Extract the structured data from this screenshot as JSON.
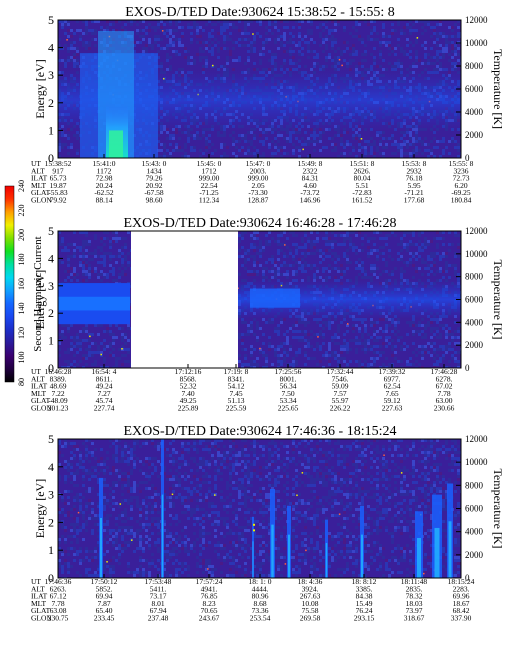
{
  "colorbar": {
    "label": "Second Harmonic Current",
    "ticks": [
      "80",
      "100",
      "120",
      "140",
      "160",
      "180",
      "200",
      "220",
      "240"
    ],
    "colors": [
      "#000000",
      "#200040",
      "#3a0070",
      "#2b1a9a",
      "#1c2ec8",
      "#1a48f0",
      "#1466ff",
      "#10a0ff",
      "#00d8f0",
      "#00e0a0",
      "#10e020",
      "#80e000",
      "#f0f000",
      "#ffa000",
      "#ff3000",
      "#f00000"
    ]
  },
  "chart_data": [
    {
      "type": "heatmap",
      "title": "EXOS-D/TED  Date:930624  15:38:52 - 15:55: 8",
      "ylabel": "Energy [eV]",
      "y2label": "Temperature [K]",
      "ylim": [
        0,
        5
      ],
      "y2lim": [
        0,
        12000
      ],
      "yticks": [
        "0",
        "1",
        "2",
        "3",
        "4",
        "5"
      ],
      "y2ticks": [
        "0",
        "2000",
        "4000",
        "6000",
        "8000",
        "10000",
        "12000"
      ],
      "row_labels": [
        "UT",
        "ALT",
        "ILAT",
        "MLT",
        "GLAT",
        "GLON"
      ],
      "columns": [
        [
          "15:38:52",
          "917",
          "65.73",
          "19.87",
          "-55.83",
          "79.92"
        ],
        [
          "15:41:0",
          "1172",
          "72.98",
          "20.24",
          "-62.52",
          "88.14"
        ],
        [
          "15:43: 0",
          "1434",
          "79.26",
          "20.92",
          "-67.58",
          "98.60"
        ],
        [
          "15:45: 0",
          "1712",
          "999.00",
          "22.54",
          "-71.25",
          "112.34"
        ],
        [
          "15:47: 0",
          "2003.",
          "999.00",
          "2.05",
          "-73.30",
          "128.87"
        ],
        [
          "15:49: 8",
          "2322",
          "84.31",
          "4.60",
          "-73.72",
          "146.96"
        ],
        [
          "15:51: 8",
          "2626.",
          "80.04",
          "5.51",
          "-72.83",
          "161.52"
        ],
        [
          "15:53: 8",
          "2932",
          "76.18",
          "5.95",
          "-71.21",
          "177.68"
        ],
        [
          "15:55: 8",
          "3236",
          "72.73",
          "6.20",
          "-69.25",
          "180.84"
        ]
      ]
    },
    {
      "type": "heatmap",
      "title": "EXOS-D/TED  Date:930624  16:46:28 - 17:46:28",
      "ylabel": "Energy [eV]",
      "y2label": "Temperature [K]",
      "ylim": [
        0,
        5
      ],
      "y2lim": [
        0,
        12000
      ],
      "yticks": [
        "0",
        "1",
        "2",
        "3",
        "4",
        "5"
      ],
      "y2ticks": [
        "0",
        "2000",
        "4000",
        "6000",
        "8000",
        "10000",
        "12000"
      ],
      "row_labels": [
        "UT",
        "ALT",
        "ILAT",
        "MLT",
        "GLAT",
        "GLON"
      ],
      "columns": [
        [
          "16:46:28",
          "8389.",
          "48.69",
          "7.22",
          "-48.09",
          "201.23"
        ],
        [
          "16:54: 4",
          "8611.",
          "49.24",
          "7.27",
          "45.74",
          "227.74"
        ],
        [
          "17:12:16",
          "8568.",
          "52.32",
          "7.40",
          "49.25",
          "225.89"
        ],
        [
          "17:19: 8",
          "8341.",
          "54.12",
          "7.45",
          "51.13",
          "225.59"
        ],
        [
          "17:25:56",
          "8001.",
          "56.34",
          "7.50",
          "53.34",
          "225.65"
        ],
        [
          "17:32:44",
          "7546.",
          "59.09",
          "7.57",
          "55.97",
          "226.22"
        ],
        [
          "17:39:32",
          "6977.",
          "62.54",
          "7.65",
          "59.12",
          "227.63"
        ],
        [
          "17:46:28",
          "6278.",
          "67.02",
          "7.78",
          "63.00",
          "230.66"
        ]
      ]
    },
    {
      "type": "heatmap",
      "title": "EXOS-D/TED  Date:930624  17:46:36 - 18:15:24",
      "ylabel": "Energy [eV]",
      "y2label": "Temperature [K]",
      "ylim": [
        0,
        5
      ],
      "y2lim": [
        0,
        12000
      ],
      "yticks": [
        "0",
        "1",
        "2",
        "3",
        "4",
        "5"
      ],
      "y2ticks": [
        "0",
        "2000",
        "4000",
        "6000",
        "8000",
        "10000",
        "12000"
      ],
      "row_labels": [
        "UT",
        "ALT",
        "ILAT",
        "MLT",
        "GLAT",
        "GLON"
      ],
      "columns": [
        [
          "17:46:36",
          "6263.",
          "67.12",
          "7.78",
          "63.08",
          "230.75"
        ],
        [
          "17:50:12",
          "5852.",
          "69.94",
          "7.87",
          "65.40",
          "233.45"
        ],
        [
          "17:53:48",
          "5411.",
          "73.17",
          "8.01",
          "67.94",
          "237.48"
        ],
        [
          "17:57:24",
          "4941.",
          "76.85",
          "8.23",
          "70.65",
          "243.67"
        ],
        [
          "18: 1: 0",
          "4444.",
          "80.96",
          "8.68",
          "73.36",
          "253.54"
        ],
        [
          "18: 4:36",
          "3924.",
          "267.63",
          "10.08",
          "75.58",
          "269.58"
        ],
        [
          "18: 8:12",
          "3385.",
          "84.38",
          "15.49",
          "76.24",
          "293.15"
        ],
        [
          "18:11:48",
          "2835.",
          "78.32",
          "18.03",
          "73.97",
          "318.67"
        ],
        [
          "18:15:24",
          "2283.",
          "69.96",
          "18.67",
          "68.42",
          "337.90"
        ]
      ]
    }
  ]
}
